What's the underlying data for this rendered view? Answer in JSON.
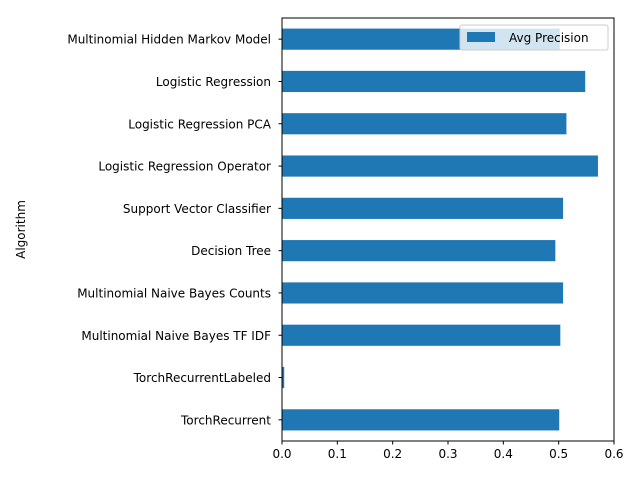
{
  "chart_data": {
    "type": "bar",
    "orientation": "horizontal",
    "title": "",
    "xlabel": "",
    "ylabel": "Algorithm",
    "xlim": [
      0.0,
      0.6
    ],
    "xticks": [
      "0.0",
      "0.1",
      "0.2",
      "0.3",
      "0.4",
      "0.5",
      "0.6"
    ],
    "categories": [
      "TorchRecurrent",
      "TorchRecurrentLabeled",
      "Multinomial Naive Bayes TF IDF",
      "Multinomial Naive Bayes Counts",
      "Decision Tree",
      "Support Vector Classifier",
      "Logistic Regression Operator",
      "Logistic Regression PCA",
      "Logistic Regression",
      "Multinomial Hidden Markov Model"
    ],
    "series": [
      {
        "name": "Avg Precision",
        "color": "#1f77b4",
        "values": [
          0.501,
          0.004,
          0.503,
          0.508,
          0.494,
          0.508,
          0.571,
          0.514,
          0.548,
          0.502
        ]
      }
    ],
    "legend": "top-right",
    "grid": false
  }
}
